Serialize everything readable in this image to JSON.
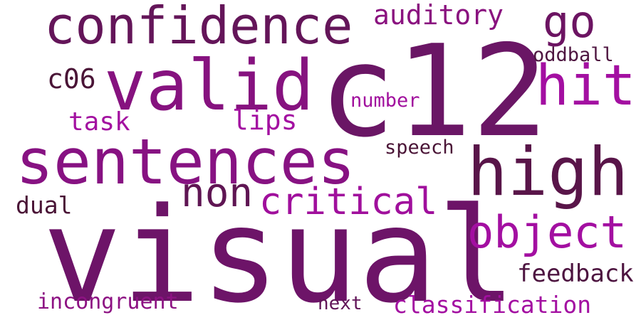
{
  "words": [
    {
      "text": "visual",
      "color": "#6d1468"
    },
    {
      "text": "c12",
      "color": "#6a1665"
    },
    {
      "text": "confidence",
      "color": "#641559"
    },
    {
      "text": "valid",
      "color": "#86127f"
    },
    {
      "text": "sentences",
      "color": "#871282"
    },
    {
      "text": "high",
      "color": "#591549"
    },
    {
      "text": "hit",
      "color": "#a30fa1"
    },
    {
      "text": "go",
      "color": "#6c1462"
    },
    {
      "text": "auditory",
      "color": "#8a127f"
    },
    {
      "text": "non",
      "color": "#5f1553"
    },
    {
      "text": "critical",
      "color": "#a00f9c"
    },
    {
      "text": "object",
      "color": "#a30fa1"
    },
    {
      "text": "c06",
      "color": "#4a1436"
    },
    {
      "text": "task",
      "color": "#a311a0"
    },
    {
      "text": "lips",
      "color": "#a30fa1"
    },
    {
      "text": "number",
      "color": "#a10f9d"
    },
    {
      "text": "oddball",
      "color": "#4e1540"
    },
    {
      "text": "speech",
      "color": "#4a1436"
    },
    {
      "text": "dual",
      "color": "#4a1436"
    },
    {
      "text": "feedback",
      "color": "#4d1440"
    },
    {
      "text": "incongruent",
      "color": "#8d1283"
    },
    {
      "text": "next",
      "color": "#611558"
    },
    {
      "text": "classification",
      "color": "#a30fa1"
    }
  ]
}
